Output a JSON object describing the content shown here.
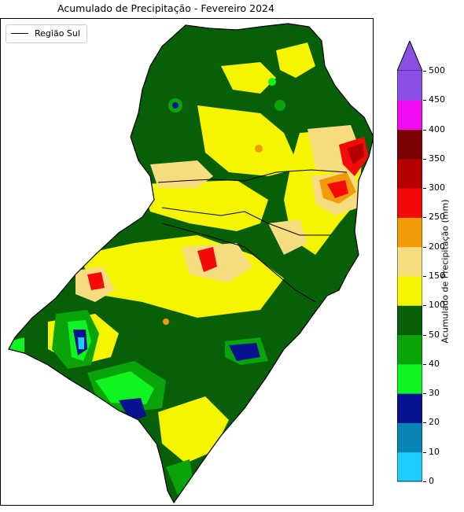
{
  "title": "Acumulado de Precipitação - Fevereiro 2024",
  "legend": {
    "label": "Região Sul"
  },
  "colorbar": {
    "label": "Acumulado de Precipitação (mm)",
    "levels": [
      0,
      10,
      20,
      30,
      40,
      50,
      100,
      150,
      200,
      250,
      300,
      350,
      400,
      450,
      500
    ],
    "tick_labels": [
      "0",
      "10",
      "20",
      "30",
      "40",
      "50",
      "100",
      "150",
      "200",
      "250",
      "300",
      "350",
      "400",
      "450",
      "500"
    ],
    "colors": [
      "#1ecbff",
      "#0884b5",
      "#06128f",
      "#10f51f",
      "#0aa40a",
      "#075f07",
      "#f5f500",
      "#f8dc80",
      "#f39a0a",
      "#f50a0a",
      "#b40000",
      "#7a0000",
      "#f00cf0",
      "#8a50e6"
    ],
    "extend": "max"
  }
}
